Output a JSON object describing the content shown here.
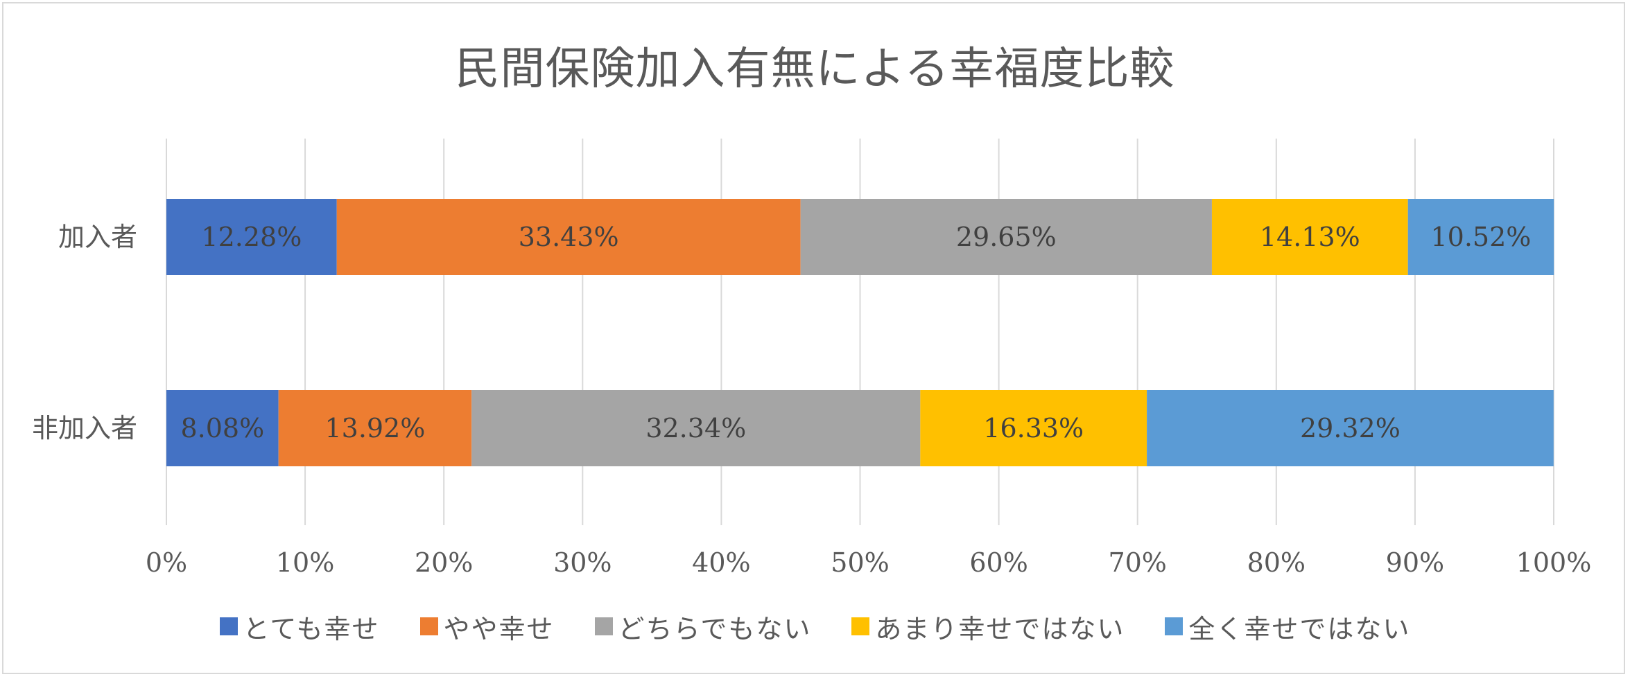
{
  "chart_data": {
    "type": "bar",
    "orientation": "horizontal",
    "stacked": "percent",
    "title": "民間保険加入有無による幸福度比較",
    "categories": [
      "加入者",
      "非加入者"
    ],
    "series": [
      {
        "name": "とても幸せ",
        "color": "#4472c4",
        "values": [
          12.28,
          8.08
        ],
        "labels": [
          "12.28%",
          "8.08%"
        ]
      },
      {
        "name": "やや幸せ",
        "color": "#ed7d31",
        "values": [
          33.43,
          13.92
        ],
        "labels": [
          "33.43%",
          "13.92%"
        ]
      },
      {
        "name": "どちらでもない",
        "color": "#a5a5a5",
        "values": [
          29.65,
          32.34
        ],
        "labels": [
          "29.65%",
          "32.34%"
        ]
      },
      {
        "name": "あまり幸せではない",
        "color": "#ffc000",
        "values": [
          14.13,
          16.33
        ],
        "labels": [
          "14.13%",
          "16.33%"
        ]
      },
      {
        "name": "全く幸せではない",
        "color": "#5b9bd5",
        "values": [
          10.52,
          29.32
        ],
        "labels": [
          "10.52%",
          "29.32%"
        ]
      }
    ],
    "xlim": [
      0,
      100
    ],
    "x_ticks": [
      "0%",
      "10%",
      "20%",
      "30%",
      "40%",
      "50%",
      "60%",
      "70%",
      "80%",
      "90%",
      "100%"
    ],
    "grid": true,
    "legend_position": "bottom",
    "xlabel": "",
    "ylabel": ""
  }
}
